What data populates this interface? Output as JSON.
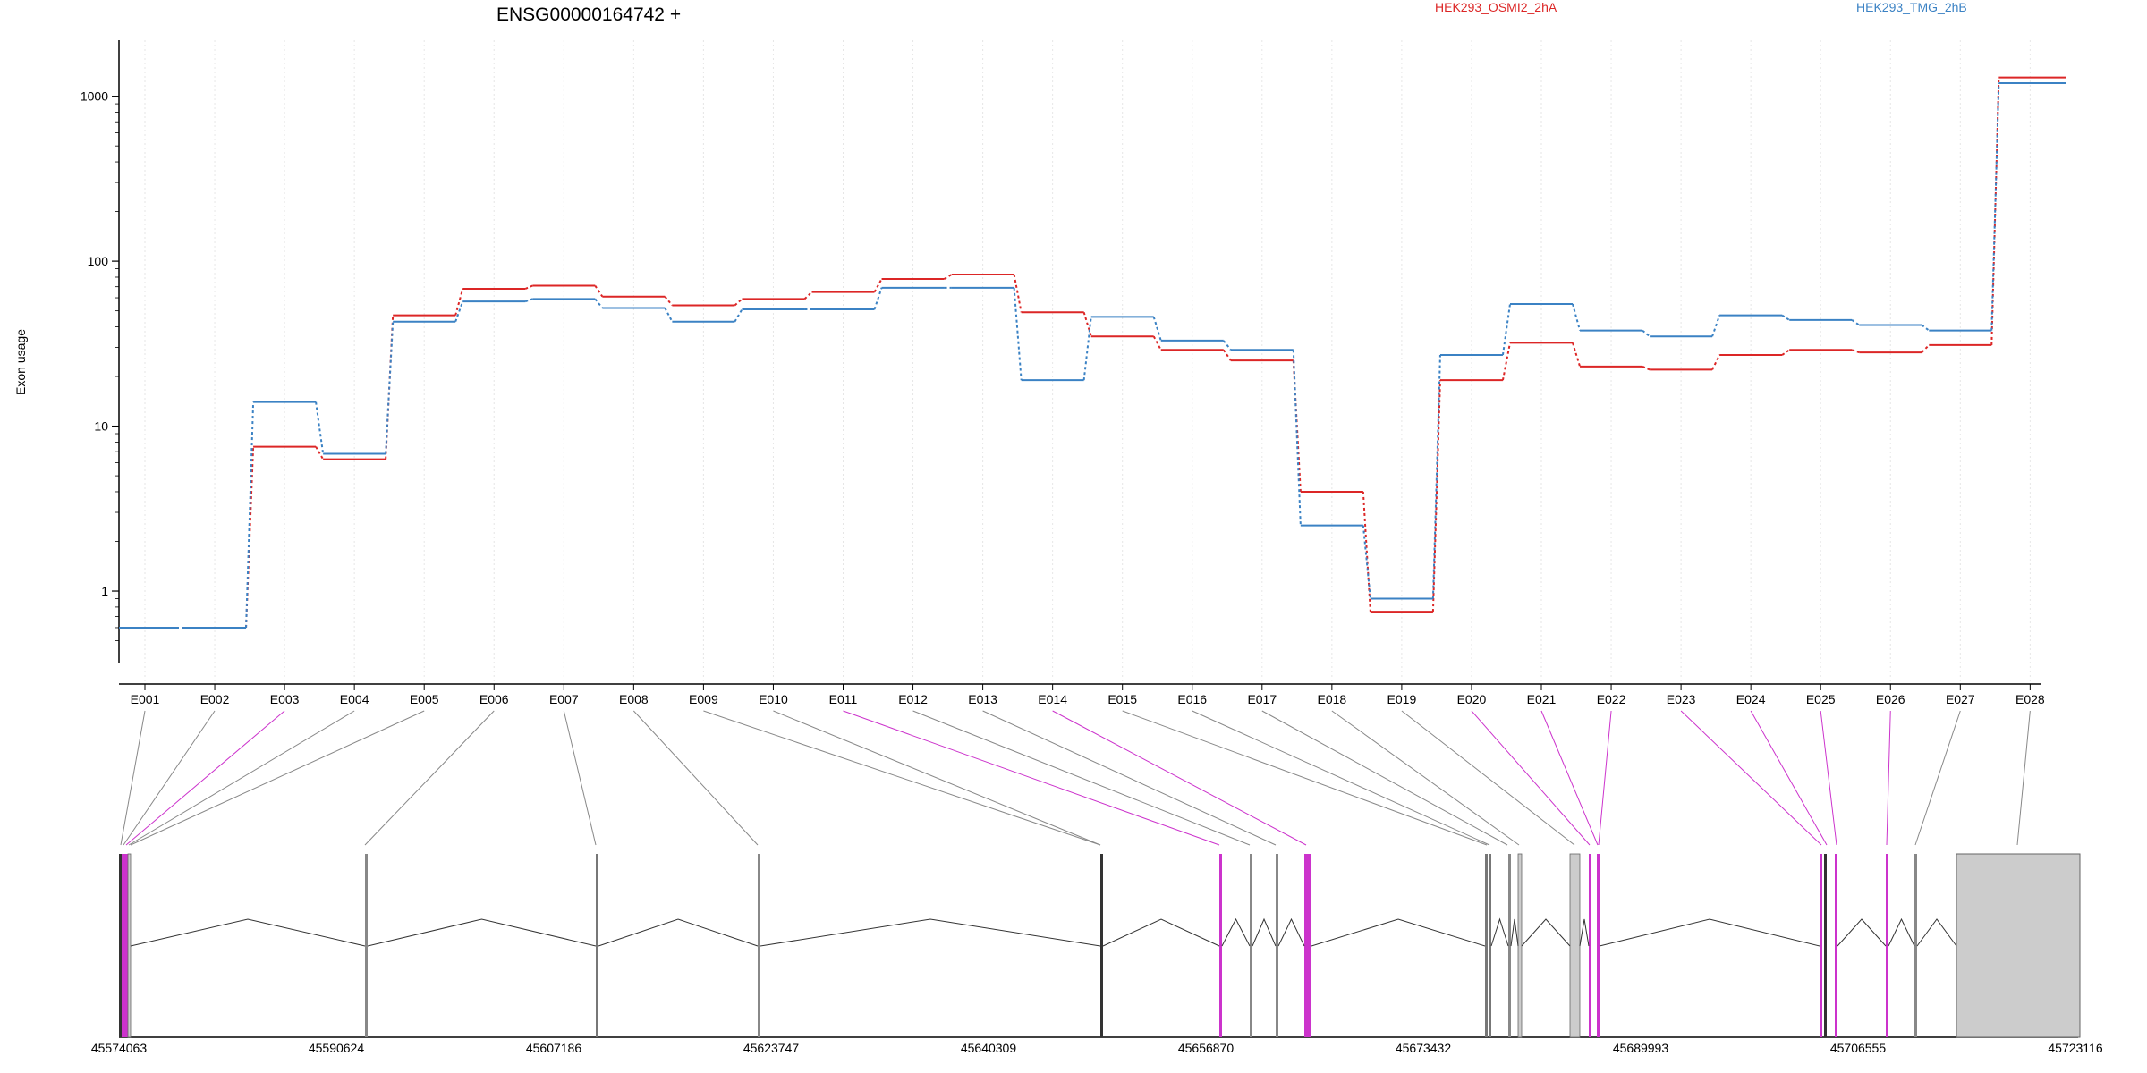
{
  "chart_data": {
    "type": "line",
    "title": "ENSG00000164742 +",
    "ylabel": "Exon usage",
    "xlabel": "",
    "yscale": "log",
    "ylim": [
      0.5,
      2000
    ],
    "yticks": [
      1,
      10,
      100,
      1000
    ],
    "ytick_labels": [
      "1",
      "10",
      "100",
      "1000"
    ],
    "grid": "vertical dotted",
    "legend_position": "top",
    "categories": [
      "E001",
      "E002",
      "E003",
      "E004",
      "E005",
      "E006",
      "E007",
      "E008",
      "E009",
      "E010",
      "E011",
      "E012",
      "E013",
      "E014",
      "E015",
      "E016",
      "E017",
      "E018",
      "E019",
      "E020",
      "E021",
      "E022",
      "E023",
      "E024",
      "E025",
      "E026",
      "E027",
      "E028"
    ],
    "series": [
      {
        "name": "HEK293_OSMI2_2hA",
        "color": "#dc2626",
        "values": [
          0.6,
          0.6,
          7.5,
          6.3,
          47,
          68,
          71,
          61,
          54,
          59,
          65,
          78,
          83,
          49,
          35,
          29,
          25,
          4.0,
          0.75,
          19,
          32,
          23,
          22,
          27,
          29,
          28,
          31,
          1300
        ]
      },
      {
        "name": "HEK293_TMG_2hB",
        "color": "#3b82c4",
        "values": [
          0.6,
          0.6,
          14,
          6.8,
          43,
          57,
          59,
          52,
          43,
          51,
          51,
          69,
          69,
          19,
          46,
          33,
          29,
          2.5,
          0.9,
          27,
          55,
          38,
          35,
          47,
          44,
          41,
          38,
          1200
        ]
      }
    ],
    "gene_model": {
      "coordinate_ticks": [
        "45574063",
        "45590624",
        "45607186",
        "45623747",
        "45640309",
        "45656870",
        "45673432",
        "45689993",
        "45706555",
        "45723116"
      ],
      "highlight_color": "#cc33cc",
      "intron_color": "#333333",
      "exon_fill_color": "#cccccc"
    }
  }
}
